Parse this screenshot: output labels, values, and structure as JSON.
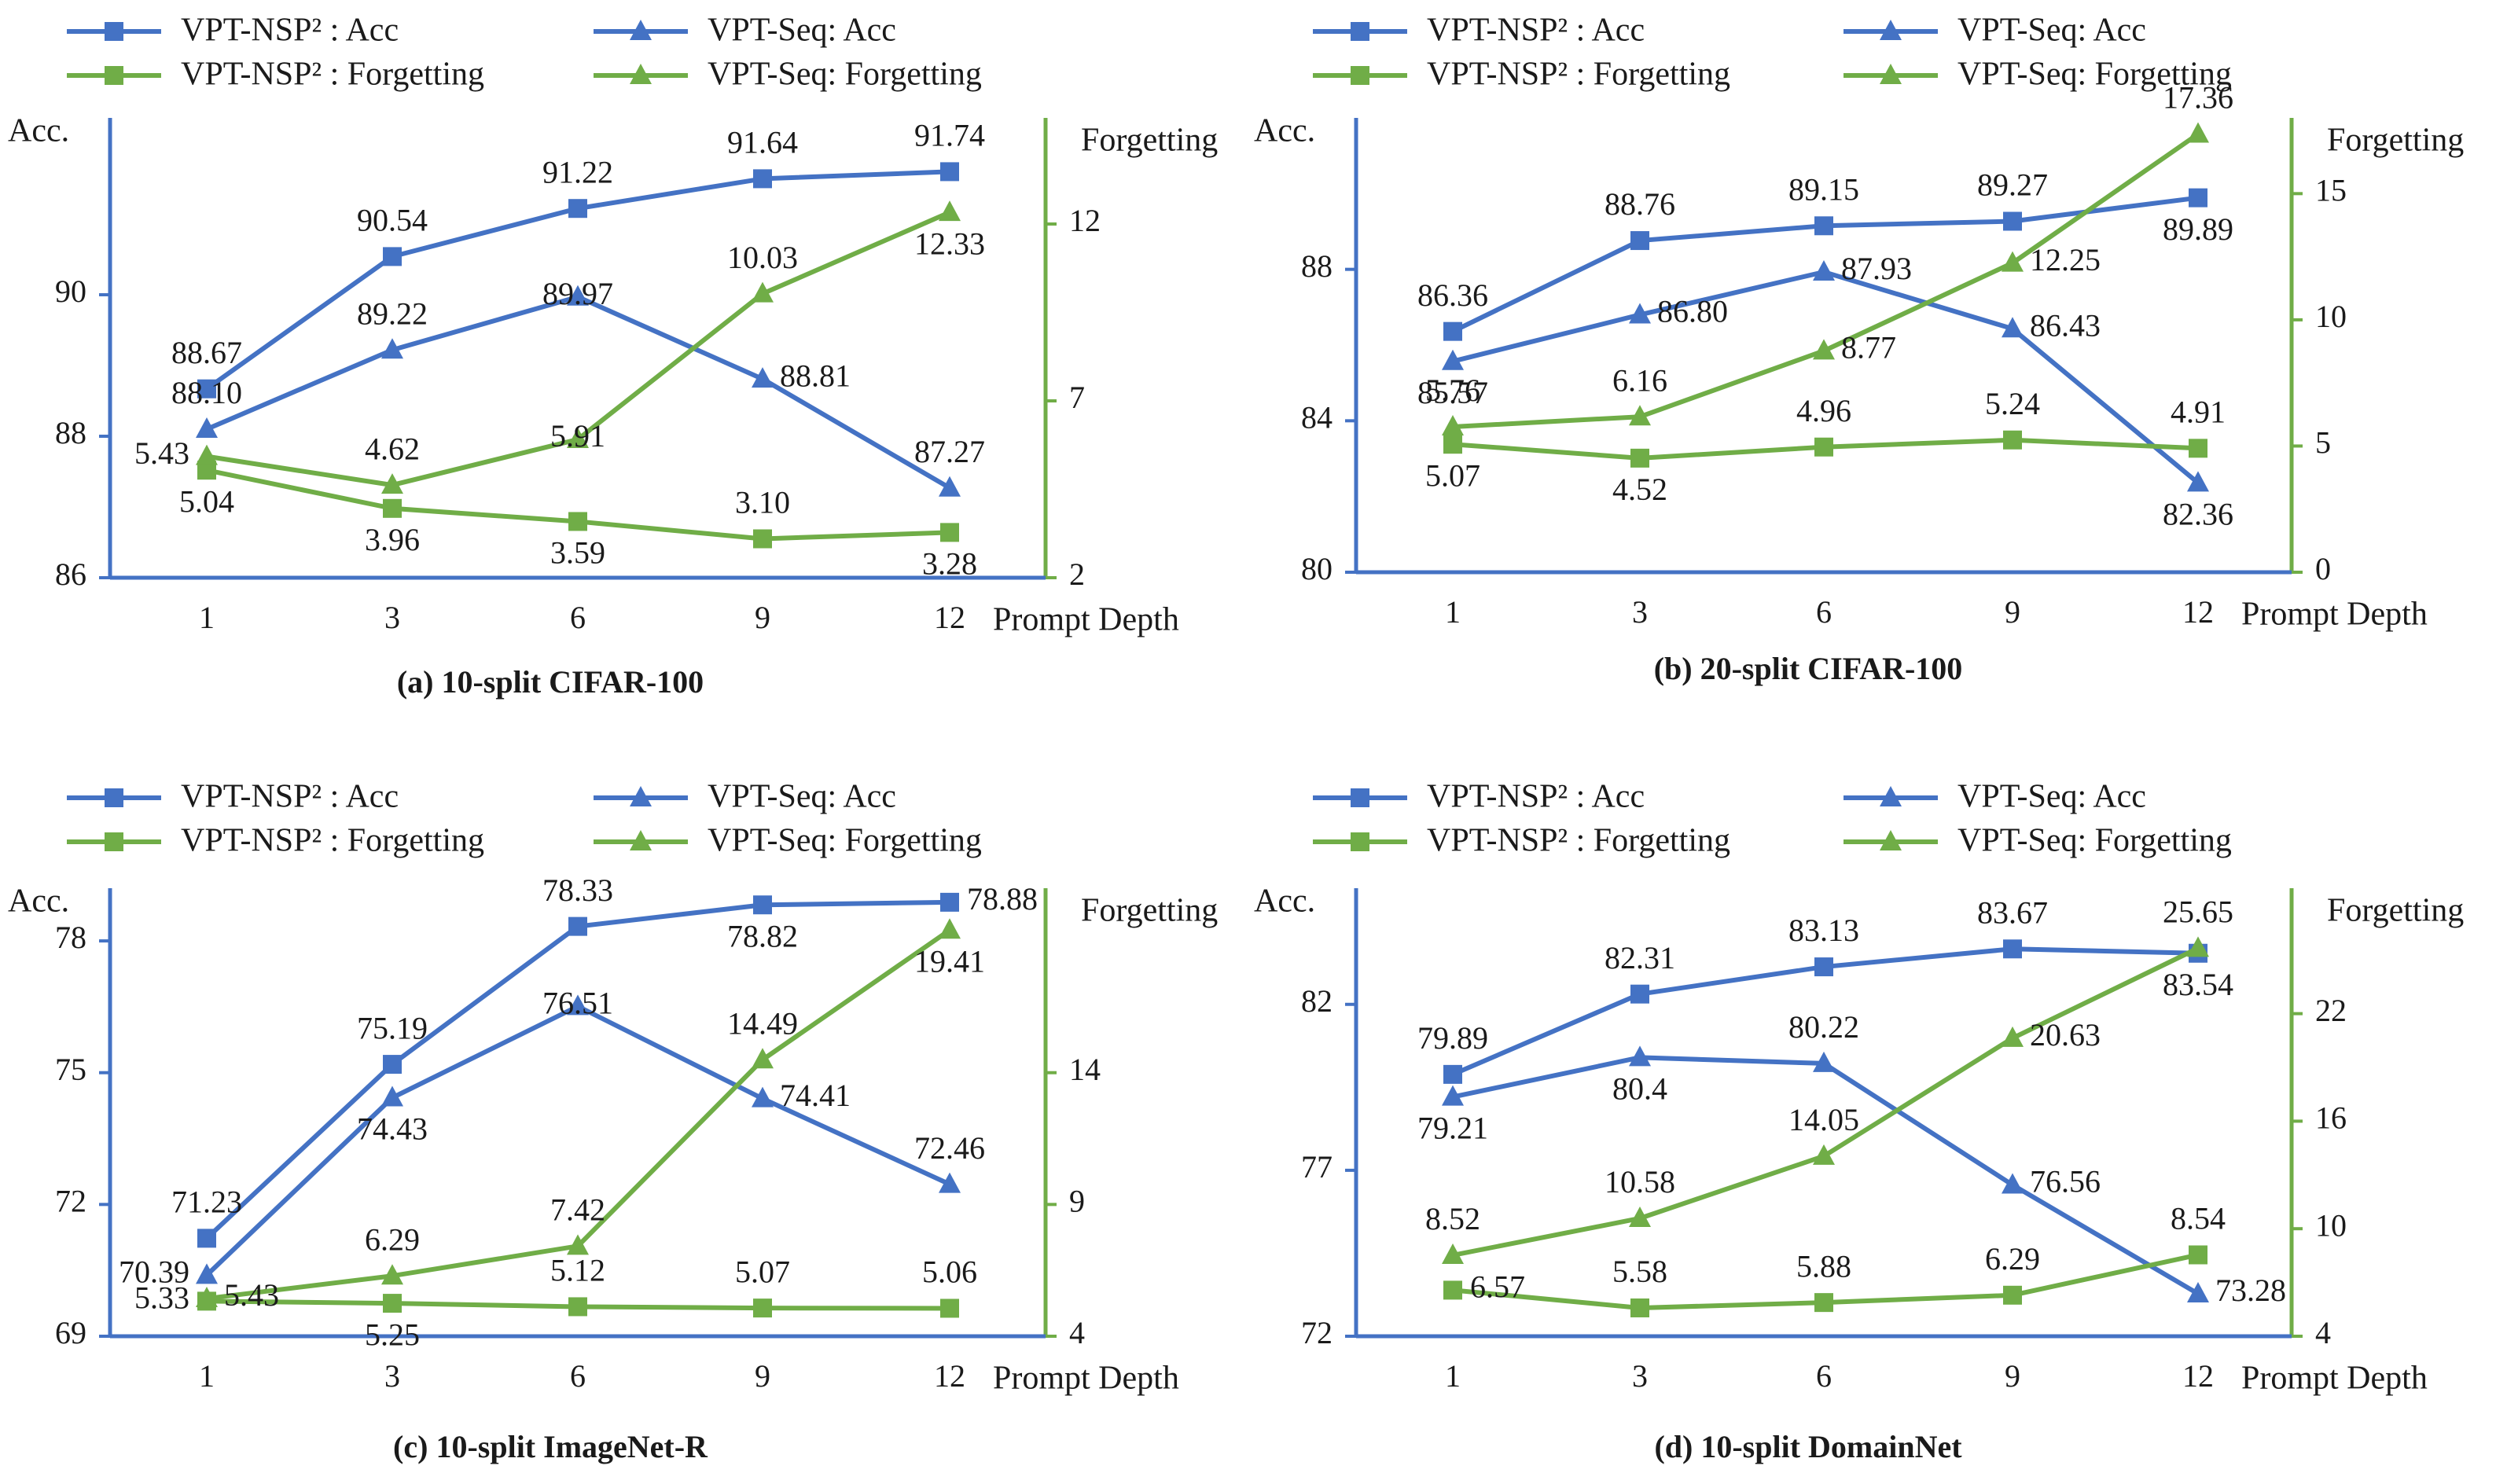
{
  "colors": {
    "acc": "#4472C4",
    "forgetting": "#70AD47",
    "text": "#1a1a1a"
  },
  "legend": {
    "nsp_acc": "VPT-NSP² : Acc",
    "seq_acc": "VPT-Seq: Acc",
    "nsp_forgetting": "VPT-NSP² : Forgetting",
    "seq_forgetting": "VPT-Seq: Forgetting"
  },
  "chart_data": [
    {
      "type": "line",
      "caption": "(a) 10-split CIFAR-100",
      "categories": [
        "1",
        "3",
        "6",
        "9",
        "12"
      ],
      "xlabel": "Prompt Depth",
      "left_axis": {
        "title": "Acc.",
        "ylim": [
          86,
          92.5
        ],
        "ticks": [
          "86",
          "88",
          "90"
        ],
        "tick_values": [
          86,
          88,
          90
        ]
      },
      "right_axis": {
        "title": "Forgetting",
        "ylim": [
          2,
          15
        ],
        "ticks": [
          "2",
          "7",
          "12"
        ],
        "tick_values": [
          2,
          7,
          12
        ]
      },
      "series": [
        {
          "name": "VPT-NSP²: Acc",
          "axis": "left",
          "marker": "square",
          "values": [
            88.67,
            90.54,
            91.22,
            91.64,
            91.74
          ],
          "labels": [
            "88.67",
            "90.54",
            "91.22",
            "91.64",
            "91.74"
          ],
          "label_pos": [
            "above",
            "above",
            "above",
            "above",
            "above"
          ]
        },
        {
          "name": "VPT-Seq: Acc",
          "axis": "left",
          "marker": "triangle",
          "values": [
            88.1,
            89.22,
            89.97,
            88.81,
            87.27
          ],
          "labels": [
            "88.10",
            "89.22",
            "89.97",
            "88.81",
            "87.27"
          ],
          "label_pos": [
            "above",
            "above",
            "center",
            "right",
            "above"
          ]
        },
        {
          "name": "VPT-NSP²: Forgetting",
          "axis": "right",
          "marker": "square",
          "values": [
            5.04,
            3.96,
            3.59,
            3.1,
            3.28
          ],
          "labels": [
            "5.04",
            "3.96",
            "3.59",
            "3.10",
            "3.28"
          ],
          "label_pos": [
            "below",
            "below",
            "below",
            "above",
            "below"
          ]
        },
        {
          "name": "VPT-Seq: Forgetting",
          "axis": "right",
          "marker": "triangle",
          "values": [
            5.43,
            4.62,
            5.91,
            10.03,
            12.33
          ],
          "labels": [
            "5.43",
            "4.62",
            "5.91",
            "10.03",
            "12.33"
          ],
          "label_pos": [
            "left",
            "above",
            "center",
            "above",
            "below"
          ]
        }
      ]
    },
    {
      "type": "line",
      "caption": "(b) 20-split CIFAR-100",
      "categories": [
        "1",
        "3",
        "6",
        "9",
        "12"
      ],
      "xlabel": "Prompt Depth",
      "left_axis": {
        "title": "Acc.",
        "ylim": [
          80,
          92
        ],
        "ticks": [
          "80",
          "84",
          "88"
        ],
        "tick_values": [
          80,
          84,
          88
        ]
      },
      "right_axis": {
        "title": "Forgetting",
        "ylim": [
          0,
          18
        ],
        "ticks": [
          "0",
          "5",
          "10",
          "15"
        ],
        "tick_values": [
          0,
          5,
          10,
          15
        ]
      },
      "series": [
        {
          "name": "VPT-NSP²: Acc",
          "axis": "left",
          "marker": "square",
          "values": [
            86.36,
            88.76,
            89.15,
            89.27,
            89.89
          ],
          "labels": [
            "86.36",
            "88.76",
            "89.15",
            "89.27",
            "89.89"
          ],
          "label_pos": [
            "above",
            "above",
            "above",
            "above",
            "below"
          ]
        },
        {
          "name": "VPT-Seq: Acc",
          "axis": "left",
          "marker": "triangle",
          "values": [
            85.57,
            86.8,
            87.93,
            86.43,
            82.36
          ],
          "labels": [
            "85.57",
            "86.80",
            "87.93",
            "86.43",
            "82.36"
          ],
          "label_pos": [
            "below",
            "right",
            "right",
            "right",
            "below"
          ]
        },
        {
          "name": "VPT-NSP²: Forgetting",
          "axis": "right",
          "marker": "square",
          "values": [
            5.07,
            4.52,
            4.96,
            5.24,
            4.91
          ],
          "labels": [
            "5.07",
            "4.52",
            "4.96",
            "5.24",
            "4.91"
          ],
          "label_pos": [
            "below",
            "below",
            "above",
            "above",
            "above"
          ]
        },
        {
          "name": "VPT-Seq: Forgetting",
          "axis": "right",
          "marker": "triangle",
          "values": [
            5.76,
            6.16,
            8.77,
            12.25,
            17.36
          ],
          "labels": [
            "5.76",
            "6.16",
            "8.77",
            "12.25",
            "17.36"
          ],
          "label_pos": [
            "above",
            "above",
            "right",
            "right",
            "above"
          ]
        }
      ]
    },
    {
      "type": "line",
      "caption": "(c) 10-split ImageNet-R",
      "categories": [
        "1",
        "3",
        "6",
        "9",
        "12"
      ],
      "xlabel": "Prompt Depth",
      "left_axis": {
        "title": "Acc.",
        "ylim": [
          69,
          79.2
        ],
        "ticks": [
          "69",
          "72",
          "75",
          "78"
        ],
        "tick_values": [
          69,
          72,
          75,
          78
        ]
      },
      "right_axis": {
        "title": "Forgetting",
        "ylim": [
          4,
          21
        ],
        "ticks": [
          "4",
          "9",
          "14"
        ],
        "tick_values": [
          4,
          9,
          14
        ]
      },
      "series": [
        {
          "name": "VPT-NSP²: Acc",
          "axis": "left",
          "marker": "square",
          "values": [
            71.23,
            75.19,
            78.33,
            78.82,
            78.88
          ],
          "labels": [
            "71.23",
            "75.19",
            "78.33",
            "78.82",
            "78.88"
          ],
          "label_pos": [
            "above",
            "above",
            "above",
            "below",
            "right"
          ]
        },
        {
          "name": "VPT-Seq: Acc",
          "axis": "left",
          "marker": "triangle",
          "values": [
            70.39,
            74.43,
            76.51,
            74.41,
            72.46
          ],
          "labels": [
            "70.39",
            "74.43",
            "76.51",
            "74.41",
            "72.46"
          ],
          "label_pos": [
            "left",
            "below",
            "center",
            "right",
            "above"
          ]
        },
        {
          "name": "VPT-NSP²: Forgetting",
          "axis": "right",
          "marker": "square",
          "values": [
            5.33,
            5.25,
            5.12,
            5.07,
            5.06
          ],
          "labels": [
            "5.33",
            "5.25",
            "5.12",
            "5.07",
            "5.06"
          ],
          "label_pos": [
            "left",
            "below",
            "above",
            "above",
            "above"
          ]
        },
        {
          "name": "VPT-Seq: Forgetting",
          "axis": "right",
          "marker": "triangle",
          "values": [
            5.43,
            6.29,
            7.42,
            14.49,
            19.41
          ],
          "labels": [
            "5.43",
            "6.29",
            "7.42",
            "14.49",
            "19.41"
          ],
          "label_pos": [
            "right",
            "above",
            "above",
            "above",
            "below"
          ]
        }
      ]
    },
    {
      "type": "line",
      "caption": "(d) 10-split DomainNet",
      "categories": [
        "1",
        "3",
        "6",
        "9",
        "12"
      ],
      "xlabel": "Prompt Depth",
      "left_axis": {
        "title": "Acc.",
        "ylim": [
          72,
          85.5
        ],
        "ticks": [
          "72",
          "77",
          "82"
        ],
        "tick_values": [
          72,
          77,
          82
        ]
      },
      "right_axis": {
        "title": "Forgetting",
        "ylim": [
          4,
          29
        ],
        "ticks": [
          "4",
          "10",
          "16",
          "22"
        ],
        "tick_values": [
          4,
          10,
          16,
          22
        ]
      },
      "series": [
        {
          "name": "VPT-NSP²: Acc",
          "axis": "left",
          "marker": "square",
          "values": [
            79.89,
            82.31,
            83.13,
            83.67,
            83.54
          ],
          "labels": [
            "79.89",
            "82.31",
            "83.13",
            "83.67",
            "83.54"
          ],
          "label_pos": [
            "above",
            "above",
            "above",
            "above",
            "below"
          ]
        },
        {
          "name": "VPT-Seq: Acc",
          "axis": "left",
          "marker": "triangle",
          "values": [
            79.21,
            80.4,
            80.22,
            76.56,
            73.28
          ],
          "labels": [
            "79.21",
            "80.4",
            "80.22",
            "76.56",
            "73.28"
          ],
          "label_pos": [
            "below",
            "below",
            "above",
            "right",
            "right"
          ]
        },
        {
          "name": "VPT-NSP²: Forgetting",
          "axis": "right",
          "marker": "square",
          "values": [
            6.57,
            5.58,
            5.88,
            6.29,
            8.54
          ],
          "labels": [
            "6.57",
            "5.58",
            "5.88",
            "6.29",
            "8.54"
          ],
          "label_pos": [
            "right",
            "above",
            "above",
            "above",
            "above"
          ]
        },
        {
          "name": "VPT-Seq: Forgetting",
          "axis": "right",
          "marker": "triangle",
          "values": [
            8.52,
            10.58,
            14.05,
            20.63,
            25.65
          ],
          "labels": [
            "8.52",
            "10.58",
            "14.05",
            "20.63",
            "25.65"
          ],
          "label_pos": [
            "above",
            "above",
            "above",
            "right",
            "above"
          ]
        }
      ]
    }
  ]
}
